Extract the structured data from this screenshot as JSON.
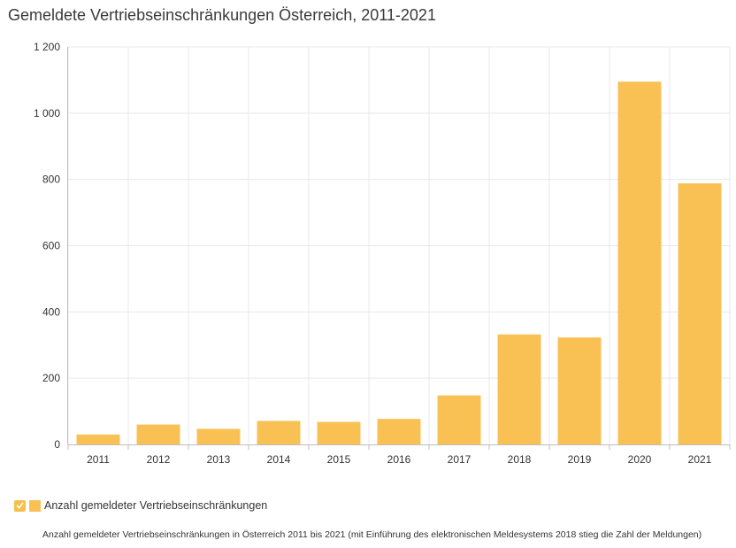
{
  "chart_data": {
    "type": "bar",
    "title": "Gemeldete Vertriebseinschränkungen Österreich, 2011-2021",
    "categories": [
      "2011",
      "2012",
      "2013",
      "2014",
      "2015",
      "2016",
      "2017",
      "2018",
      "2019",
      "2020",
      "2021"
    ],
    "series": [
      {
        "name": "Anzahl gemeldeter Vertriebseinschränkungen",
        "values": [
          30,
          60,
          47,
          71,
          68,
          77,
          148,
          332,
          323,
          1095,
          788
        ]
      }
    ],
    "ylim": [
      0,
      1200
    ],
    "yticks": [
      0,
      200,
      400,
      600,
      800,
      1000,
      1200
    ],
    "ytick_labels": [
      "0",
      "200",
      "400",
      "600",
      "800",
      "1 000",
      "1 200"
    ],
    "xlabel": "",
    "ylabel": "",
    "grid": true,
    "legend_position": "bottom-left",
    "bar_color": "#f9c154",
    "caption": "Anzahl gemeldeter Vertriebseinschränkungen in Österreich 2011 bis 2021 (mit Einführung des elektronischen Meldesystems 2018 stieg die Zahl der Meldungen)"
  },
  "legend": {
    "checked": true,
    "label": "Anzahl gemeldeter Vertriebseinschränkungen"
  },
  "colors": {
    "bar": "#f9c154",
    "checkbox": "#f5c04b",
    "grid": "#e8e8e8"
  }
}
